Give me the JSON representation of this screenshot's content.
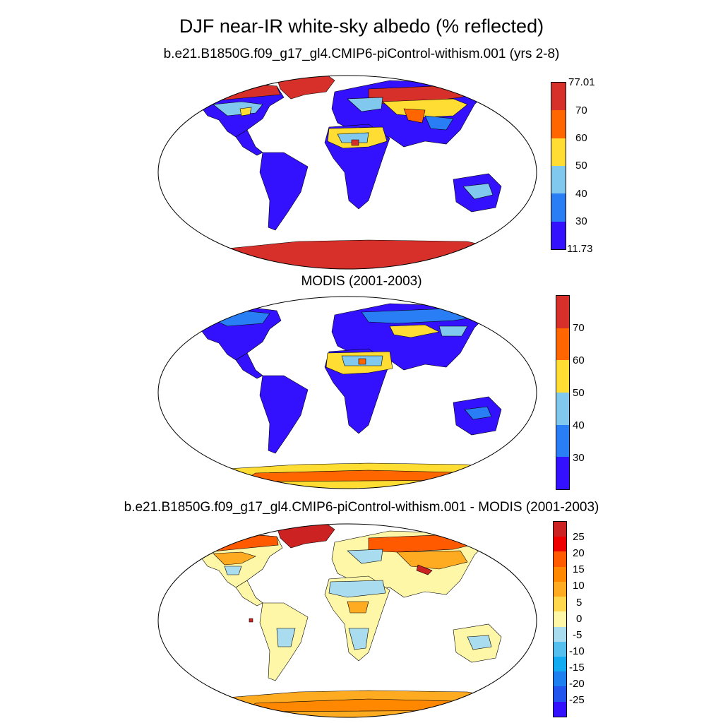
{
  "title": "DJF near-IR white-sky albedo (% reflected)",
  "panels": [
    {
      "subtitle": "b.e21.B1850G.f09_g17_gl4.CMIP6-piControl-withism.001 (yrs 2-8)",
      "colorbar": {
        "colors": [
          "#3311ff",
          "#2a7ef5",
          "#80c8ee",
          "#ffdd33",
          "#ff6600",
          "#d7302a"
        ],
        "labels": [
          "77.01",
          "70",
          "60",
          "50",
          "40",
          "30",
          "11.73"
        ]
      }
    },
    {
      "subtitle": "MODIS (2001-2003)",
      "colorbar": {
        "colors": [
          "#3311ff",
          "#2a7ef5",
          "#80c8ee",
          "#ffdd33",
          "#ff6600",
          "#d7302a"
        ],
        "labels": [
          "70",
          "60",
          "50",
          "40",
          "30"
        ]
      }
    },
    {
      "subtitle": "b.e21.B1850G.f09_g17_gl4.CMIP6-piControl-withism.001 - MODIS (2001-2003)",
      "colorbar": {
        "colors": [
          "#3311ff",
          "#2255ee",
          "#1e7ff0",
          "#12aaf0",
          "#55bff0",
          "#aadcf0",
          "#fff7a8",
          "#ffd84d",
          "#ffab22",
          "#ff8800",
          "#ff5a00",
          "#ee0000",
          "#cc2222"
        ],
        "labels": [
          "25",
          "20",
          "15",
          "10",
          "5",
          "0",
          "-5",
          "-10",
          "-15",
          "-20",
          "-25"
        ]
      }
    }
  ]
}
